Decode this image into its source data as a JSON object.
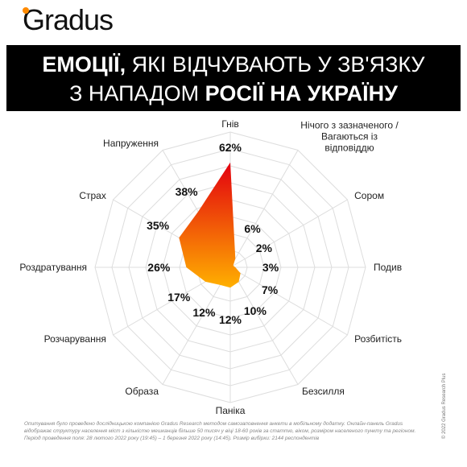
{
  "logo": "Gradus",
  "chart_data": {
    "type": "radar",
    "title_parts": [
      {
        "text": "ЕМОЦІЇ,",
        "bold": true
      },
      {
        "text": " ЯКІ ВІДЧУВАЮТЬ У ЗВ'ЯЗКУ",
        "bold": false
      },
      {
        "text": "З НАПАДОМ ",
        "bold": false,
        "newline": true
      },
      {
        "text": "РОСІЇ НА УКРАЇНУ",
        "bold": true
      }
    ],
    "categories": [
      "Гнів",
      "Нічого з зазначеного / Вагаються із відповіддю",
      "Сором",
      "Подив",
      "Розбитість",
      "Безсилля",
      "Паніка",
      "Образа",
      "Розчарування",
      "Роздратування",
      "Страх",
      "Напруження"
    ],
    "values": [
      62,
      6,
      2,
      3,
      7,
      10,
      12,
      12,
      17,
      26,
      35,
      38
    ],
    "value_labels": [
      "62%",
      "6%",
      "2%",
      "3%",
      "7%",
      "10%",
      "12%",
      "12%",
      "17%",
      "26%",
      "35%",
      "38%"
    ],
    "rlim": [
      0,
      80
    ],
    "rings": [
      10,
      20,
      30,
      40,
      50,
      60,
      70,
      80
    ],
    "colors": [
      "#e3000f",
      "#ffb000"
    ]
  },
  "footnote": "Опитування було проведено дослідницькою компанією Gradus Research методом самозаповнення анкети в мобільному додатку. Онлайн-панель Gradus відображає структуру населення міст з кількістю мешканців більше 50 тисяч у віці 18-60 років за статтю, віком, розміром населеного пункту та регіоном. Період проведення поля: 28 лютого 2022 року (19:45) – 1 березня 2022 року (14:45). Розмір вибірки: 2144 респондентів",
  "copyright": "© 2022 Gradus Research Plus"
}
